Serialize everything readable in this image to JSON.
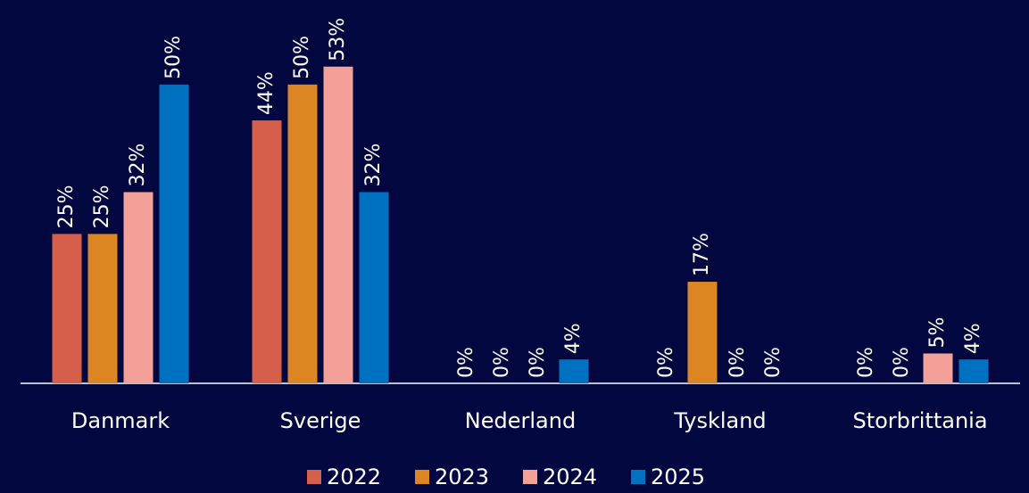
{
  "chart_data": {
    "type": "bar",
    "categories": [
      "Danmark",
      "Sverige",
      "Nederland",
      "Tyskland",
      "Storbrittania"
    ],
    "series": [
      {
        "name": "2022",
        "color": "#d65f4c",
        "values": [
          25,
          44,
          0,
          0,
          0
        ],
        "value_labels": [
          "25%",
          "44%",
          "0%",
          "0%",
          "0%"
        ]
      },
      {
        "name": "2023",
        "color": "#dc8623",
        "values": [
          25,
          50,
          0,
          17,
          0
        ],
        "value_labels": [
          "25%",
          "50%",
          "0%",
          "17%",
          "0%"
        ]
      },
      {
        "name": "2024",
        "color": "#f3a099",
        "values": [
          32,
          53,
          0,
          0,
          5
        ],
        "value_labels": [
          "32%",
          "53%",
          "0%",
          "0%",
          "5%"
        ]
      },
      {
        "name": "2025",
        "color": "#0070c0",
        "values": [
          50,
          32,
          4,
          0,
          4
        ],
        "value_labels": [
          "50%",
          "32%",
          "4%",
          "0%",
          "4%"
        ]
      }
    ],
    "ylim": [
      0,
      64
    ],
    "legend": "bottom"
  }
}
